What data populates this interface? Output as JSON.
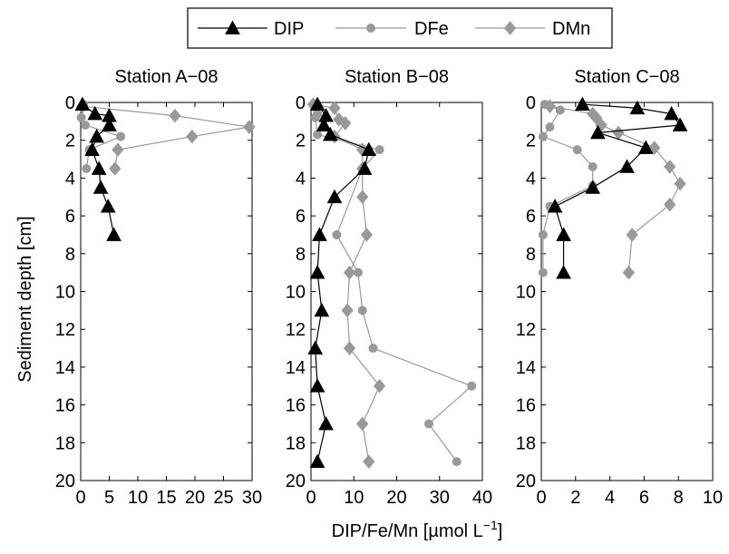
{
  "chart_data": {
    "type": "line",
    "xlabel": "DIP/Fe/Mn [µmol L",
    "xlabel_sup": "−1",
    "xlabel_end": "]",
    "ylabel": "Sediment depth [cm]",
    "legend": {
      "placement": "top-center",
      "entries": [
        {
          "name": "DIP",
          "color": "#000000",
          "marker": "triangle"
        },
        {
          "name": "DFe",
          "color": "#999999",
          "marker": "circle"
        },
        {
          "name": "DMn",
          "color": "#999999",
          "marker": "diamond"
        }
      ]
    },
    "y_axis": {
      "ylim": [
        0,
        20
      ],
      "inverted": true,
      "ticks": [
        0,
        2,
        4,
        6,
        8,
        10,
        12,
        14,
        16,
        18,
        20
      ]
    },
    "panels": [
      {
        "title": "Station A−08",
        "xlim": [
          0,
          30
        ],
        "xticks": [
          0,
          5,
          10,
          15,
          20,
          25,
          30
        ],
        "xtick_labels": [
          "0",
          "5",
          "10",
          "15",
          "20",
          "25",
          "30"
        ],
        "series": [
          {
            "name": "DIP",
            "points": [
              [
                0.3,
                0.1
              ],
              [
                2.5,
                0.6
              ],
              [
                5.0,
                0.7
              ],
              [
                5.0,
                1.2
              ],
              [
                2.8,
                1.8
              ],
              [
                2.0,
                2.5
              ],
              [
                3.2,
                3.5
              ],
              [
                3.5,
                4.5
              ],
              [
                4.8,
                5.5
              ],
              [
                5.8,
                7.0
              ]
            ]
          },
          {
            "name": "DFe",
            "points": [
              [
                0.5,
                0.1
              ],
              [
                0.1,
                0.8
              ],
              [
                0.8,
                1.2
              ],
              [
                7.0,
                1.8
              ],
              [
                1.5,
                2.5
              ],
              [
                1.0,
                3.5
              ]
            ]
          },
          {
            "name": "DMn",
            "points": [
              [
                0.3,
                0.2
              ],
              [
                16.5,
                0.7
              ],
              [
                29.5,
                1.3
              ],
              [
                19.5,
                1.8
              ],
              [
                6.5,
                2.5
              ],
              [
                6.0,
                3.5
              ]
            ]
          }
        ]
      },
      {
        "title": "Station B−08",
        "xlim": [
          0,
          40
        ],
        "xticks": [
          0,
          10,
          20,
          30,
          40
        ],
        "xtick_labels": [
          "0",
          "10",
          "20",
          "30",
          "40"
        ],
        "series": [
          {
            "name": "DIP",
            "points": [
              [
                1.5,
                0.1
              ],
              [
                3.5,
                0.7
              ],
              [
                3.0,
                1.2
              ],
              [
                4.5,
                1.7
              ],
              [
                13.5,
                2.5
              ],
              [
                12.5,
                3.5
              ],
              [
                5.5,
                5.0
              ],
              [
                2.0,
                7.0
              ],
              [
                1.5,
                9.0
              ],
              [
                2.5,
                11.0
              ],
              [
                1.0,
                13.0
              ],
              [
                1.5,
                15.0
              ],
              [
                3.5,
                17.0
              ],
              [
                1.5,
                19.0
              ]
            ]
          },
          {
            "name": "DFe",
            "points": [
              [
                1.0,
                0.1
              ],
              [
                1.5,
                0.6
              ],
              [
                1.0,
                0.8
              ],
              [
                1.5,
                1.7
              ],
              [
                16.0,
                2.5
              ],
              [
                12.0,
                3.5
              ],
              [
                6.0,
                7.0
              ],
              [
                11.0,
                9.0
              ],
              [
                12.0,
                11.0
              ],
              [
                14.5,
                13.0
              ],
              [
                37.5,
                15.0
              ],
              [
                27.5,
                17.0
              ],
              [
                34.0,
                19.0
              ]
            ]
          },
          {
            "name": "DMn",
            "points": [
              [
                0.5,
                0.1
              ],
              [
                5.5,
                0.3
              ],
              [
                6.5,
                0.9
              ],
              [
                8.0,
                1.1
              ],
              [
                5.5,
                1.8
              ],
              [
                12.0,
                2.5
              ],
              [
                12.0,
                3.5
              ],
              [
                12.0,
                5.0
              ],
              [
                13.0,
                7.0
              ],
              [
                9.0,
                9.0
              ],
              [
                8.5,
                11.0
              ],
              [
                9.0,
                13.0
              ],
              [
                16.0,
                15.0
              ],
              [
                12.0,
                17.0
              ],
              [
                13.5,
                19.0
              ]
            ]
          }
        ]
      },
      {
        "title": "Station C−08",
        "xlim": [
          0,
          10
        ],
        "xticks": [
          0,
          2,
          4,
          6,
          8,
          10
        ],
        "xtick_labels": [
          "0",
          "2",
          "4",
          "6",
          "8",
          "10"
        ],
        "series": [
          {
            "name": "DIP",
            "points": [
              [
                2.4,
                0.1
              ],
              [
                5.6,
                0.3
              ],
              [
                7.6,
                0.6
              ],
              [
                8.1,
                1.2
              ],
              [
                3.3,
                1.6
              ],
              [
                6.1,
                2.4
              ],
              [
                5.0,
                3.4
              ],
              [
                3.0,
                4.5
              ],
              [
                0.8,
                5.5
              ],
              [
                1.3,
                7.0
              ],
              [
                1.3,
                9.0
              ]
            ]
          },
          {
            "name": "DFe",
            "points": [
              [
                0.2,
                0.1
              ],
              [
                1.1,
                0.4
              ],
              [
                0.5,
                1.3
              ],
              [
                0.1,
                1.8
              ],
              [
                2.1,
                2.5
              ],
              [
                3.0,
                3.4
              ],
              [
                3.0,
                4.4
              ],
              [
                0.5,
                5.5
              ],
              [
                0.1,
                7.0
              ],
              [
                0.1,
                9.0
              ]
            ]
          },
          {
            "name": "DMn",
            "points": [
              [
                0.5,
                0.2
              ],
              [
                3.0,
                0.6
              ],
              [
                3.2,
                0.8
              ],
              [
                3.5,
                1.2
              ],
              [
                4.5,
                1.6
              ],
              [
                6.6,
                2.4
              ],
              [
                7.5,
                3.4
              ],
              [
                8.1,
                4.3
              ],
              [
                7.5,
                5.4
              ],
              [
                5.3,
                7.0
              ],
              [
                5.1,
                9.0
              ]
            ]
          }
        ]
      }
    ]
  }
}
